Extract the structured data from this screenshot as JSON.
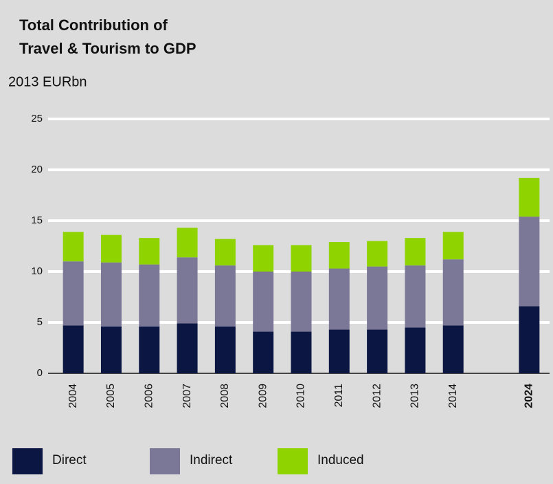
{
  "chart_data": {
    "type": "stacked_bar",
    "title": [
      "Total Contribution of",
      "Travel & Tourism to GDP"
    ],
    "subtitle": "2013 EURbn",
    "categories": [
      "2004",
      "2005",
      "2006",
      "2007",
      "2008",
      "2009",
      "2010",
      "2011",
      "2012",
      "2013",
      "2014",
      null,
      "2024"
    ],
    "series": [
      {
        "name": "Direct",
        "color": "#0b1742",
        "values": [
          4.7,
          4.6,
          4.6,
          4.9,
          4.6,
          4.1,
          4.1,
          4.3,
          4.3,
          4.5,
          4.7,
          null,
          6.6
        ]
      },
      {
        "name": "Indirect",
        "color": "#7a7797",
        "values": [
          6.3,
          6.3,
          6.1,
          6.5,
          6.0,
          5.9,
          5.9,
          6.0,
          6.2,
          6.1,
          6.5,
          null,
          8.8
        ]
      },
      {
        "name": "Induced",
        "color": "#8fd400",
        "values": [
          2.9,
          2.7,
          2.6,
          2.9,
          2.6,
          2.6,
          2.6,
          2.6,
          2.5,
          2.7,
          2.7,
          null,
          3.8
        ]
      }
    ],
    "ylim": [
      0,
      25
    ],
    "yticks": [
      0,
      5,
      10,
      15,
      20,
      25
    ],
    "grid": true
  }
}
